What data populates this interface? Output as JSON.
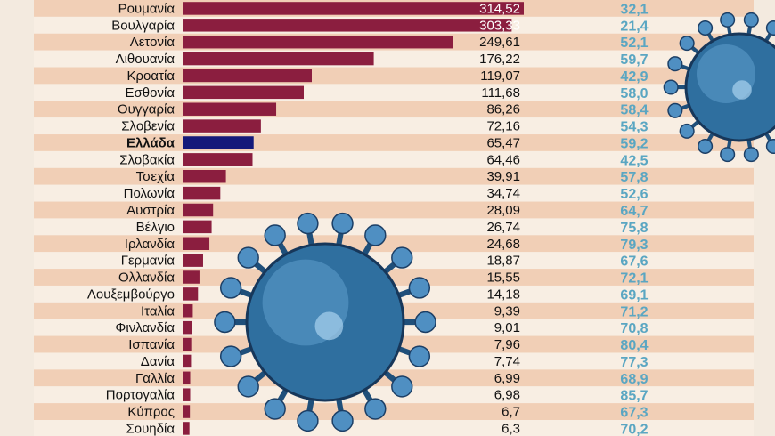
{
  "colors": {
    "bar": "#8b1e3f",
    "bar_highlight": "#14197a",
    "stripe_dark": "#f1cfb6",
    "stripe_light": "#f8eee3",
    "percent_text": "#5aa6c2",
    "virus": "#2f6f9f"
  },
  "chart_data": {
    "type": "bar",
    "orientation": "horizontal",
    "highlight": "Ελλάδα",
    "categories": [
      "Ρουμανία",
      "Βουλγαρία",
      "Λετονία",
      "Λιθουανία",
      "Κροατία",
      "Εσθονία",
      "Ουγγαρία",
      "Σλοβενία",
      "Ελλάδα",
      "Σλοβακία",
      "Τσεχία",
      "Πολωνία",
      "Αυστρία",
      "Βέλγιο",
      "Ιρλανδία",
      "Γερμανία",
      "Ολλανδία",
      "Λουξεμβούργο",
      "Ιταλία",
      "Φινλανδία",
      "Ισπανία",
      "Δανία",
      "Γαλλία",
      "Πορτογαλία",
      "Κύπρος",
      "Σουηδία"
    ],
    "value_labels": [
      "314,52",
      "303,33",
      "249,61",
      "176,22",
      "119,07",
      "111,68",
      "86,26",
      "72,16",
      "65,47",
      "64,46",
      "39,91",
      "34,74",
      "28,09",
      "26,74",
      "24,68",
      "18,87",
      "15,55",
      "14,18",
      "9,39",
      "9,01",
      "7,96",
      "7,74",
      "6,99",
      "6,98",
      "6,7",
      "6,3"
    ],
    "values": [
      314.52,
      303.33,
      249.61,
      176.22,
      119.07,
      111.68,
      86.26,
      72.16,
      65.47,
      64.46,
      39.91,
      34.74,
      28.09,
      26.74,
      24.68,
      18.87,
      15.55,
      14.18,
      9.39,
      9.01,
      7.96,
      7.74,
      6.99,
      6.98,
      6.7,
      6.3
    ],
    "percent_labels": [
      "32,1",
      "21,4",
      "52,1",
      "59,7",
      "42,9",
      "58,0",
      "58,4",
      "54,3",
      "59,2",
      "42,5",
      "57,8",
      "52,6",
      "64,7",
      "75,8",
      "79,3",
      "67,6",
      "72,1",
      "69,1",
      "71,2",
      "70,8",
      "80,4",
      "77,3",
      "68,9",
      "85,7",
      "67,3",
      "70,2"
    ],
    "percents": [
      32.1,
      21.4,
      52.1,
      59.7,
      42.9,
      58.0,
      58.4,
      54.3,
      59.2,
      42.5,
      57.8,
      52.6,
      64.7,
      75.8,
      79.3,
      67.6,
      72.1,
      69.1,
      71.2,
      70.8,
      80.4,
      77.3,
      68.9,
      85.7,
      67.3,
      70.2
    ],
    "xlim": [
      0,
      314.52
    ]
  },
  "decorations": [
    {
      "name": "virus-illustration-large",
      "icon": "coronavirus-icon"
    },
    {
      "name": "virus-illustration-small",
      "icon": "coronavirus-icon"
    }
  ]
}
